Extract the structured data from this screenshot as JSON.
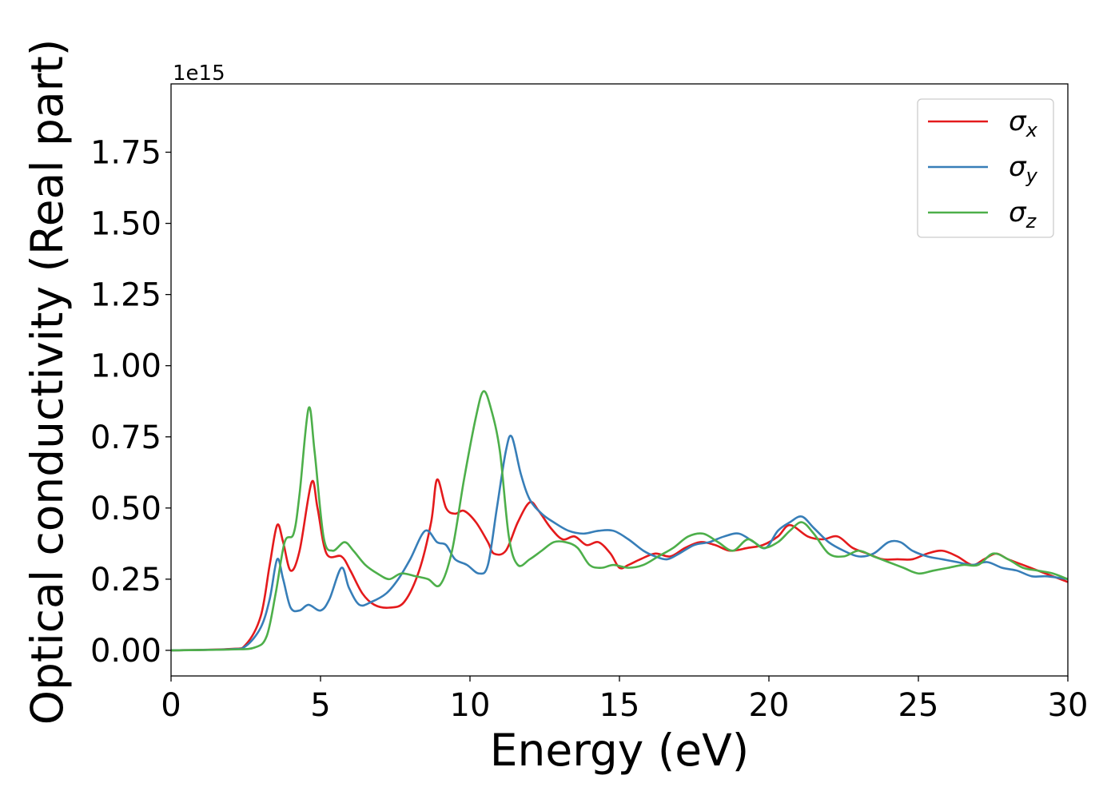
{
  "chart_data": {
    "type": "line",
    "xlabel": "Energy (eV)",
    "ylabel": "Optical conductivity (Real part)",
    "y_offset_label": "1e15",
    "xlim": [
      0,
      30
    ],
    "ylim": [
      -0.09,
      1.99
    ],
    "x_ticks": [
      "0",
      "5",
      "10",
      "15",
      "20",
      "25",
      "30"
    ],
    "y_ticks": [
      "0.00",
      "0.25",
      "0.50",
      "0.75",
      "1.00",
      "1.25",
      "1.50",
      "1.75"
    ],
    "grid": false,
    "legend_position": "top-right",
    "series": [
      {
        "name": "σ",
        "subscript": "x",
        "color": "#e41a1c",
        "points": [
          [
            0,
            0
          ],
          [
            2,
            0.005
          ],
          [
            2.5,
            0.02
          ],
          [
            3.0,
            0.12
          ],
          [
            3.3,
            0.3
          ],
          [
            3.55,
            0.44
          ],
          [
            3.75,
            0.38
          ],
          [
            4.0,
            0.28
          ],
          [
            4.3,
            0.35
          ],
          [
            4.7,
            0.59
          ],
          [
            4.9,
            0.5
          ],
          [
            5.2,
            0.34
          ],
          [
            5.7,
            0.33
          ],
          [
            6.0,
            0.28
          ],
          [
            6.4,
            0.2
          ],
          [
            6.8,
            0.16
          ],
          [
            7.3,
            0.15
          ],
          [
            7.8,
            0.17
          ],
          [
            8.3,
            0.28
          ],
          [
            8.7,
            0.45
          ],
          [
            8.9,
            0.6
          ],
          [
            9.2,
            0.5
          ],
          [
            9.5,
            0.48
          ],
          [
            9.8,
            0.49
          ],
          [
            10.2,
            0.45
          ],
          [
            10.6,
            0.38
          ],
          [
            10.8,
            0.34
          ],
          [
            11.2,
            0.35
          ],
          [
            11.6,
            0.45
          ],
          [
            12.0,
            0.52
          ],
          [
            12.3,
            0.49
          ],
          [
            12.7,
            0.43
          ],
          [
            13.1,
            0.39
          ],
          [
            13.5,
            0.4
          ],
          [
            13.9,
            0.37
          ],
          [
            14.3,
            0.38
          ],
          [
            14.7,
            0.34
          ],
          [
            15.0,
            0.29
          ],
          [
            15.3,
            0.3
          ],
          [
            15.7,
            0.32
          ],
          [
            16.2,
            0.34
          ],
          [
            16.7,
            0.33
          ],
          [
            17.2,
            0.36
          ],
          [
            17.7,
            0.38
          ],
          [
            18.2,
            0.37
          ],
          [
            18.7,
            0.35
          ],
          [
            19.3,
            0.36
          ],
          [
            19.8,
            0.37
          ],
          [
            20.3,
            0.4
          ],
          [
            20.7,
            0.44
          ],
          [
            21.3,
            0.4
          ],
          [
            21.8,
            0.39
          ],
          [
            22.3,
            0.4
          ],
          [
            22.8,
            0.36
          ],
          [
            23.3,
            0.34
          ],
          [
            23.8,
            0.32
          ],
          [
            24.3,
            0.32
          ],
          [
            24.8,
            0.32
          ],
          [
            25.3,
            0.34
          ],
          [
            25.8,
            0.35
          ],
          [
            26.3,
            0.33
          ],
          [
            26.8,
            0.3
          ],
          [
            27.2,
            0.32
          ],
          [
            27.6,
            0.34
          ],
          [
            28.0,
            0.32
          ],
          [
            28.5,
            0.3
          ],
          [
            29.0,
            0.28
          ],
          [
            29.5,
            0.26
          ],
          [
            30,
            0.24
          ]
        ]
      },
      {
        "name": "σ",
        "subscript": "y",
        "color": "#377eb8",
        "points": [
          [
            0,
            0
          ],
          [
            2,
            0.004
          ],
          [
            2.5,
            0.015
          ],
          [
            3.0,
            0.08
          ],
          [
            3.3,
            0.18
          ],
          [
            3.55,
            0.32
          ],
          [
            3.75,
            0.25
          ],
          [
            4.0,
            0.15
          ],
          [
            4.3,
            0.14
          ],
          [
            4.6,
            0.16
          ],
          [
            5.0,
            0.14
          ],
          [
            5.3,
            0.18
          ],
          [
            5.7,
            0.29
          ],
          [
            5.95,
            0.22
          ],
          [
            6.3,
            0.16
          ],
          [
            6.7,
            0.17
          ],
          [
            7.2,
            0.2
          ],
          [
            7.6,
            0.25
          ],
          [
            8.0,
            0.32
          ],
          [
            8.5,
            0.42
          ],
          [
            8.9,
            0.38
          ],
          [
            9.2,
            0.37
          ],
          [
            9.5,
            0.32
          ],
          [
            9.9,
            0.3
          ],
          [
            10.3,
            0.27
          ],
          [
            10.6,
            0.3
          ],
          [
            10.9,
            0.5
          ],
          [
            11.2,
            0.7
          ],
          [
            11.4,
            0.75
          ],
          [
            11.7,
            0.62
          ],
          [
            12.0,
            0.53
          ],
          [
            12.4,
            0.48
          ],
          [
            12.8,
            0.45
          ],
          [
            13.3,
            0.42
          ],
          [
            13.8,
            0.41
          ],
          [
            14.3,
            0.42
          ],
          [
            14.8,
            0.42
          ],
          [
            15.3,
            0.39
          ],
          [
            15.8,
            0.35
          ],
          [
            16.2,
            0.33
          ],
          [
            16.6,
            0.32
          ],
          [
            17.0,
            0.34
          ],
          [
            17.5,
            0.37
          ],
          [
            18.0,
            0.38
          ],
          [
            18.5,
            0.4
          ],
          [
            19.0,
            0.41
          ],
          [
            19.5,
            0.38
          ],
          [
            19.9,
            0.36
          ],
          [
            20.3,
            0.42
          ],
          [
            20.7,
            0.45
          ],
          [
            21.1,
            0.47
          ],
          [
            21.5,
            0.43
          ],
          [
            22.0,
            0.38
          ],
          [
            22.5,
            0.35
          ],
          [
            23.0,
            0.33
          ],
          [
            23.5,
            0.34
          ],
          [
            24.0,
            0.38
          ],
          [
            24.4,
            0.38
          ],
          [
            24.8,
            0.35
          ],
          [
            25.3,
            0.33
          ],
          [
            25.8,
            0.32
          ],
          [
            26.3,
            0.31
          ],
          [
            26.8,
            0.3
          ],
          [
            27.3,
            0.31
          ],
          [
            27.8,
            0.29
          ],
          [
            28.3,
            0.28
          ],
          [
            28.8,
            0.26
          ],
          [
            29.3,
            0.26
          ],
          [
            30,
            0.25
          ]
        ]
      },
      {
        "name": "σ",
        "subscript": "z",
        "color": "#4daf4a",
        "points": [
          [
            0,
            0
          ],
          [
            2,
            0.003
          ],
          [
            2.8,
            0.01
          ],
          [
            3.2,
            0.05
          ],
          [
            3.5,
            0.2
          ],
          [
            3.8,
            0.38
          ],
          [
            4.1,
            0.41
          ],
          [
            4.3,
            0.55
          ],
          [
            4.6,
            0.85
          ],
          [
            4.8,
            0.7
          ],
          [
            5.1,
            0.4
          ],
          [
            5.4,
            0.35
          ],
          [
            5.8,
            0.38
          ],
          [
            6.1,
            0.35
          ],
          [
            6.5,
            0.3
          ],
          [
            6.9,
            0.27
          ],
          [
            7.3,
            0.25
          ],
          [
            7.7,
            0.27
          ],
          [
            8.2,
            0.26
          ],
          [
            8.6,
            0.25
          ],
          [
            9.0,
            0.23
          ],
          [
            9.4,
            0.35
          ],
          [
            9.8,
            0.6
          ],
          [
            10.2,
            0.82
          ],
          [
            10.45,
            0.91
          ],
          [
            10.7,
            0.85
          ],
          [
            11.0,
            0.7
          ],
          [
            11.3,
            0.4
          ],
          [
            11.6,
            0.3
          ],
          [
            12.0,
            0.32
          ],
          [
            12.4,
            0.35
          ],
          [
            12.8,
            0.38
          ],
          [
            13.2,
            0.38
          ],
          [
            13.6,
            0.36
          ],
          [
            14.0,
            0.3
          ],
          [
            14.4,
            0.29
          ],
          [
            14.8,
            0.3
          ],
          [
            15.3,
            0.29
          ],
          [
            15.8,
            0.3
          ],
          [
            16.3,
            0.33
          ],
          [
            16.8,
            0.36
          ],
          [
            17.3,
            0.4
          ],
          [
            17.8,
            0.41
          ],
          [
            18.3,
            0.38
          ],
          [
            18.8,
            0.35
          ],
          [
            19.3,
            0.39
          ],
          [
            19.8,
            0.36
          ],
          [
            20.3,
            0.38
          ],
          [
            20.7,
            0.42
          ],
          [
            21.1,
            0.45
          ],
          [
            21.5,
            0.41
          ],
          [
            22.0,
            0.34
          ],
          [
            22.5,
            0.33
          ],
          [
            23.0,
            0.35
          ],
          [
            23.5,
            0.33
          ],
          [
            24.0,
            0.31
          ],
          [
            24.5,
            0.29
          ],
          [
            25.0,
            0.27
          ],
          [
            25.5,
            0.28
          ],
          [
            26.0,
            0.29
          ],
          [
            26.5,
            0.3
          ],
          [
            27.0,
            0.3
          ],
          [
            27.5,
            0.34
          ],
          [
            28.0,
            0.32
          ],
          [
            28.5,
            0.29
          ],
          [
            29.0,
            0.28
          ],
          [
            29.5,
            0.27
          ],
          [
            30,
            0.25
          ]
        ]
      }
    ]
  }
}
